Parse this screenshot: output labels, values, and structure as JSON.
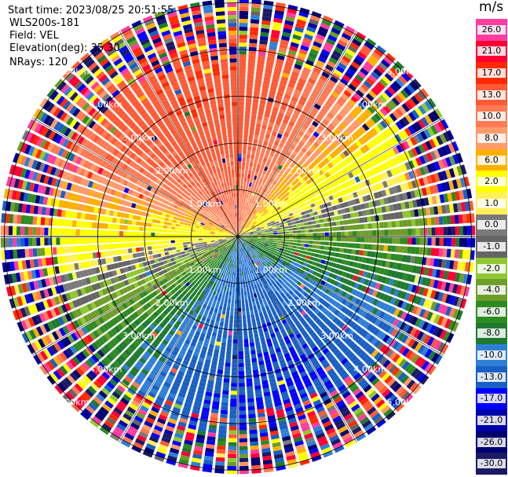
{
  "header": {
    "start_time": "Start time: 2023/08/25 20:51:55",
    "instrument": "WLS200s-181",
    "field": "Field: VEL",
    "elevation": "Elevation(deg): 35.30",
    "nrays": "NRays: 120"
  },
  "colorbar": {
    "unit": "m/s",
    "labels": [
      "26.0",
      "21.0",
      "17.0",
      "13.0",
      "10.0",
      "8.0",
      "6.0",
      "2.0",
      "1.0",
      "0.0",
      "-1.0",
      "-2.0",
      "-4.0",
      "-6.0",
      "-8.0",
      "-10.0",
      "-13.0",
      "-17.0",
      "-21.0",
      "-26.0",
      "-30.0"
    ],
    "colors": [
      "#ff3c9f",
      "#ff0035",
      "#ff2a00",
      "#ff5a36",
      "#ff7a55",
      "#ff9b6a",
      "#ffb000",
      "#ffff00",
      "#fff05a",
      "#7a7a7a",
      "#656565",
      "#8fc832",
      "#6e9d2a",
      "#2e8b22",
      "#1f7a30",
      "#2f7fd8",
      "#1a5fc4",
      "#0000ff",
      "#0000a8",
      "#000070",
      "#1b1a64"
    ]
  },
  "chart_data": {
    "type": "heatmap",
    "subtype": "radar PPI (plan position indicator)",
    "field": "VEL",
    "units": "m/s",
    "nrays": 120,
    "elevation_deg": 35.3,
    "range_rings_km": [
      1.0,
      2.0,
      3.0,
      4.0,
      5.0
    ],
    "ring_label_text": [
      "1.00km",
      "2.00km",
      "3.00km",
      "4.00km",
      "5.00km"
    ],
    "color_levels_ms": [
      -30,
      -26,
      -21,
      -17,
      -13,
      -10,
      -8,
      -6,
      -4,
      -2,
      -1,
      0,
      1,
      2,
      6,
      8,
      10,
      13,
      17,
      21,
      26
    ],
    "pattern": {
      "description": "Approaching winds (blue/green, negative) to the south and east, receding winds (orange/red, positive) to the north; near-zero band (grey/yellow) oriented roughly WSW-ENE; noisy far ranges",
      "north_sector_ms": 15,
      "south_sector_ms": -12,
      "zero_line_bearing_deg": 75,
      "noise_onset_km": 4.0
    }
  }
}
